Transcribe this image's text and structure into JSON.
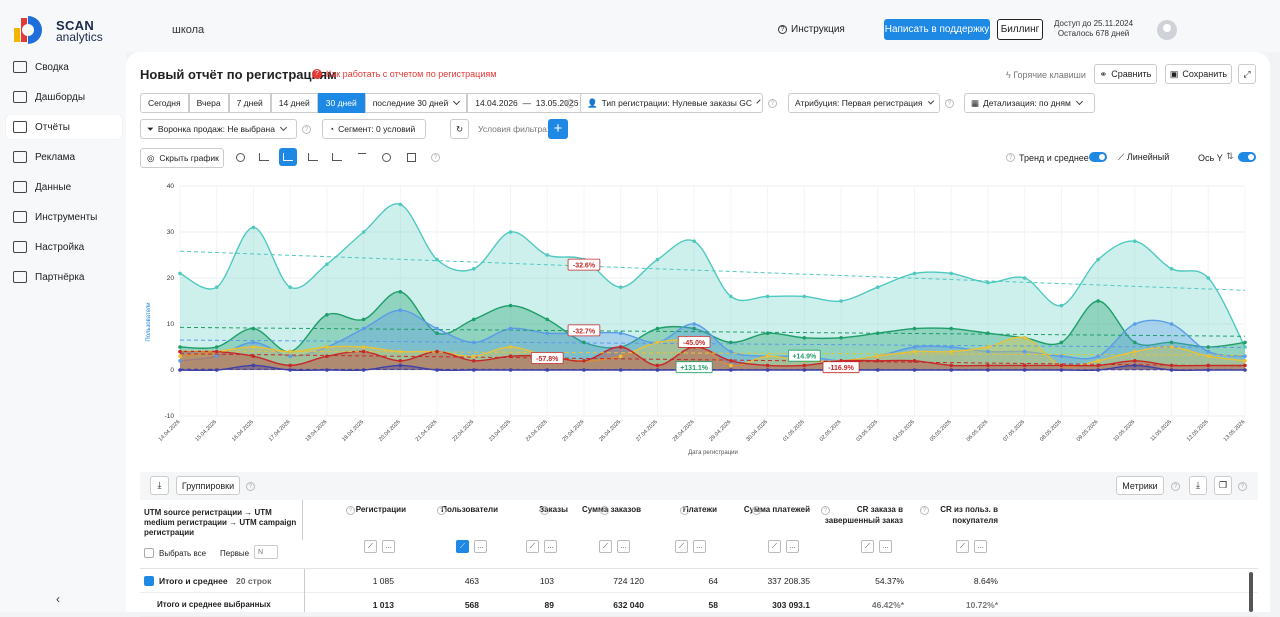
{
  "app": {
    "logo_name": "SCAN",
    "logo_sub": "analytics",
    "project": "школа"
  },
  "header": {
    "instruction": "Инструкция",
    "support": "Написать в поддержку",
    "billing": "Биллинг",
    "access_line1": "Доступ до 25.11.2024",
    "access_line2": "Осталось 678 дней"
  },
  "sidebar": {
    "items": [
      {
        "label": "Сводка"
      },
      {
        "label": "Дашборды"
      },
      {
        "label": "Отчёты"
      },
      {
        "label": "Реклама"
      },
      {
        "label": "Данные"
      },
      {
        "label": "Инструменты"
      },
      {
        "label": "Настройка"
      },
      {
        "label": "Партнёрка"
      }
    ],
    "active": "Отчёты",
    "collapse": "‹"
  },
  "report": {
    "title": "Новый отчёт по регистрациям",
    "howto": "Как работать с отчетом по регистрациям",
    "hotkeys": "Горячие клавиши",
    "compare": "Сравнить",
    "save": "Сохранить"
  },
  "filters": {
    "periods": [
      "Сегодня",
      "Вчера",
      "7 дней",
      "14 дней",
      "30 дней"
    ],
    "active_period": "30 дней",
    "period_select": "последние 30 дней",
    "date_from": "14.04.2026",
    "date_sep": "—",
    "date_to": "13.05.2026",
    "reg_type": "Тип регистрации: Нулевые заказы GC",
    "attribution": "Атрибуция: Первая регистрация",
    "detail": "Детализация:  по дням",
    "funnel": "Воронка продаж: Не выбрана",
    "segment": "Сегмент: 0 условий",
    "conditions": "Условия фильтра:",
    "plus": "+"
  },
  "chart_controls": {
    "hide_chart": "Скрыть график",
    "trend": "Тренд и среднее",
    "linear": "Линейный",
    "axis_y": "Ось Y"
  },
  "chart_data": {
    "type": "area",
    "xlabel": "Дата регистрации",
    "ylabel": "Пользователи",
    "ylim": [
      -10,
      40
    ],
    "yticks": [
      -10,
      0,
      10,
      20,
      30,
      40
    ],
    "grid": true,
    "categories": [
      "14.04.2026",
      "15.04.2026",
      "16.04.2026",
      "17.04.2026",
      "18.04.2026",
      "19.04.2026",
      "20.04.2026",
      "21.04.2026",
      "22.04.2026",
      "23.04.2026",
      "24.04.2026",
      "25.04.2026",
      "26.04.2026",
      "27.04.2026",
      "28.04.2026",
      "29.04.2026",
      "30.04.2026",
      "01.05.2026",
      "02.05.2026",
      "03.05.2026",
      "04.05.2026",
      "05.05.2026",
      "06.05.2026",
      "07.05.2026",
      "08.05.2026",
      "09.05.2026",
      "10.05.2026",
      "11.05.2026",
      "12.05.2026",
      "13.05.2026"
    ],
    "series": [
      {
        "color": "#4fc9bf",
        "values": [
          21,
          18,
          31,
          18,
          23,
          30,
          36,
          24,
          22,
          30,
          25,
          24,
          18,
          24,
          28,
          16,
          16,
          16,
          15,
          18,
          21,
          21,
          19,
          20,
          14,
          24,
          28,
          22,
          20,
          5
        ]
      },
      {
        "color": "#1e9e6a",
        "values": [
          5,
          5,
          9,
          4,
          12,
          11,
          17,
          8,
          11,
          14,
          11,
          6,
          5,
          9,
          9,
          6,
          8,
          7,
          7,
          8,
          9,
          9,
          8,
          7,
          6,
          15,
          6,
          6,
          5,
          6
        ]
      },
      {
        "color": "#5b9be8",
        "values": [
          2,
          3,
          6,
          3,
          5,
          9,
          13,
          9,
          6,
          9,
          8,
          8,
          8,
          6,
          10,
          4,
          3,
          3,
          2,
          3,
          5,
          5,
          4,
          4,
          3,
          3,
          10,
          10,
          4,
          3
        ]
      },
      {
        "color": "#e8c23a",
        "values": [
          3,
          4,
          5,
          4,
          5,
          5,
          4,
          4,
          3,
          5,
          3,
          2,
          3,
          6,
          6,
          1,
          3,
          2,
          2,
          3,
          4,
          4,
          5,
          7,
          1,
          2,
          4,
          5,
          3,
          2
        ]
      },
      {
        "color": "#c62828",
        "values": [
          4,
          4,
          3,
          1,
          3,
          4,
          2,
          4,
          2,
          3,
          3,
          2,
          5,
          1,
          5,
          2,
          1,
          1,
          2,
          2,
          2,
          1,
          1,
          1,
          1,
          1,
          2,
          1,
          1,
          1
        ]
      },
      {
        "color": "#3f3fa8",
        "values": [
          0,
          0,
          1,
          0,
          0,
          0,
          1,
          0,
          0,
          0,
          0,
          0,
          0,
          0,
          0,
          0,
          0,
          0,
          0,
          0,
          0,
          0,
          0,
          0,
          0,
          0,
          1,
          0,
          0,
          0
        ]
      }
    ],
    "annotations": [
      {
        "text": "-32.6%",
        "color": "#c62828",
        "x": "25.04.2026",
        "y": 22.8
      },
      {
        "text": "-32.7%",
        "color": "#c62828",
        "x": "25.04.2026",
        "y": 8.5
      },
      {
        "text": "-57.8%",
        "color": "#c62828",
        "x": "24.04.2026",
        "y": 2.5
      },
      {
        "text": "-45.0%",
        "color": "#c62828",
        "x": "28.04.2026",
        "y": 6
      },
      {
        "text": "+131.1%",
        "color": "#1e9e6a",
        "x": "28.04.2026",
        "y": 0.5
      },
      {
        "text": "+14.9%",
        "color": "#1e9e6a",
        "x": "01.05.2026",
        "y": 3
      },
      {
        "text": "-116.9%",
        "color": "#c62828",
        "x": "02.05.2026",
        "y": 0.5
      }
    ]
  },
  "table": {
    "groupings": "Группировки",
    "metrics": "Метрики",
    "group_header": "UTM source регистрации → UTM medium регистрации → UTM campaign регистрации",
    "select_all": "Выбрать все",
    "first": "Первые",
    "first_placeholder": "N",
    "columns": [
      "Регистрации",
      "Пользователи",
      "Заказы",
      "Сумма заказов",
      "Платежи",
      "Сумма платежей",
      "CR заказа в завершенный заказ",
      "CR из польз. в покупателя"
    ],
    "total_label": "Итого и среднее",
    "total_rows": "20 строк",
    "total": [
      "1 085",
      "463",
      "103",
      "724 120",
      "64",
      "337 208.35",
      "54.37%",
      "8.64%"
    ],
    "selected_label": "Итого и среднее выбранных",
    "selected": [
      "1 013",
      "568",
      "89",
      "632 040",
      "58",
      "303 093.1",
      "46.42%",
      "10.72%"
    ],
    "star": "*"
  }
}
